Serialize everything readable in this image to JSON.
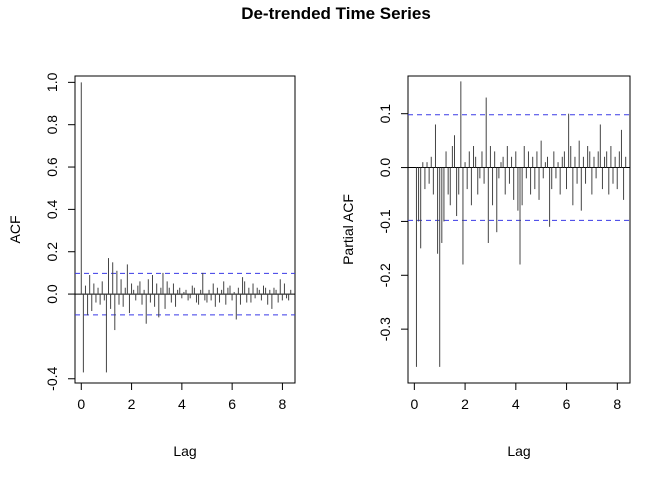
{
  "title": "De-trended Time Series",
  "chart_data": [
    {
      "type": "bar",
      "subtype": "acf",
      "xlabel": "Lag",
      "ylabel": "ACF",
      "xlim": [
        -0.25,
        8.5
      ],
      "ylim": [
        -0.42,
        1.03
      ],
      "xticks": [
        0,
        2,
        4,
        6,
        8
      ],
      "yticks": [
        -0.4,
        0.0,
        0.2,
        0.4,
        0.6,
        0.8,
        1.0
      ],
      "ytick_labels": [
        "-0.4",
        "0.0",
        "0.2",
        "0.4",
        "0.6",
        "0.8",
        "1.0"
      ],
      "conf_band": [
        -0.098,
        0.098
      ],
      "lag_step": 0.0833,
      "lags_start": 0,
      "values": [
        1.0,
        -0.37,
        0.04,
        -0.1,
        0.09,
        -0.08,
        0.05,
        -0.04,
        0.03,
        -0.05,
        0.06,
        -0.03,
        -0.37,
        0.17,
        -0.07,
        0.15,
        -0.17,
        0.11,
        -0.05,
        0.07,
        -0.06,
        0.03,
        0.14,
        -0.09,
        0.05,
        0.02,
        -0.03,
        0.04,
        0.06,
        -0.05,
        0.02,
        -0.14,
        0.07,
        -0.04,
        0.09,
        -0.06,
        0.05,
        -0.11,
        0.03,
        0.1,
        -0.07,
        0.06,
        0.03,
        -0.04,
        0.05,
        -0.06,
        0.02,
        0.03,
        -0.02,
        0.01,
        0.02,
        -0.03,
        -0.02,
        0.04,
        0.03,
        -0.04,
        -0.05,
        0.02,
        0.1,
        -0.03,
        -0.04,
        0.02,
        -0.03,
        0.05,
        -0.06,
        0.03,
        -0.04,
        0.02,
        0.06,
        -0.05,
        0.03,
        0.04,
        -0.03,
        0.01,
        -0.12,
        0.03,
        -0.05,
        0.08,
        0.06,
        -0.04,
        0.03,
        -0.04,
        0.05,
        -0.02,
        0.03,
        0.02,
        -0.03,
        0.04,
        0.03,
        -0.05,
        0.02,
        -0.07,
        0.03,
        0.02,
        -0.04,
        0.07,
        -0.03,
        0.05,
        -0.02,
        -0.03,
        0.02
      ]
    },
    {
      "type": "bar",
      "subtype": "pacf",
      "xlabel": "Lag",
      "ylabel": "Partial ACF",
      "xlim": [
        -0.25,
        8.5
      ],
      "ylim": [
        -0.4,
        0.17
      ],
      "xticks": [
        0,
        2,
        4,
        6,
        8
      ],
      "yticks": [
        -0.3,
        -0.2,
        -0.1,
        0.0,
        0.1
      ],
      "ytick_labels": [
        "-0.3",
        "-0.2",
        "-0.1",
        "0.0",
        "0.1"
      ],
      "conf_band": [
        -0.098,
        0.098
      ],
      "lag_step": 0.0833,
      "lags_start": 0.0833,
      "values": [
        -0.37,
        -0.1,
        -0.15,
        0.01,
        -0.04,
        0.01,
        -0.03,
        0.02,
        -0.05,
        0.08,
        -0.16,
        -0.37,
        -0.14,
        -0.1,
        0.03,
        -0.05,
        -0.07,
        0.04,
        0.06,
        -0.09,
        -0.05,
        0.16,
        -0.18,
        0.01,
        -0.04,
        0.03,
        -0.07,
        0.04,
        0.02,
        -0.05,
        -0.02,
        0.03,
        -0.03,
        0.13,
        -0.14,
        0.04,
        -0.07,
        0.03,
        -0.12,
        -0.02,
        0.01,
        0.02,
        -0.05,
        0.04,
        -0.03,
        0.02,
        -0.06,
        0.03,
        -0.08,
        -0.18,
        -0.07,
        0.04,
        -0.02,
        0.03,
        -0.05,
        0.02,
        -0.04,
        0.03,
        -0.06,
        0.05,
        -0.02,
        0.01,
        0.02,
        -0.11,
        -0.04,
        0.03,
        -0.02,
        0.01,
        -0.05,
        0.02,
        0.03,
        -0.04,
        0.1,
        0.04,
        -0.07,
        0.02,
        -0.03,
        0.05,
        -0.08,
        0.02,
        -0.03,
        0.04,
        0.03,
        -0.05,
        0.02,
        -0.02,
        0.03,
        0.08,
        -0.04,
        0.02,
        0.03,
        -0.05,
        0.04,
        -0.03,
        0.02,
        -0.04,
        0.03,
        0.07,
        -0.06,
        0.02
      ]
    }
  ]
}
